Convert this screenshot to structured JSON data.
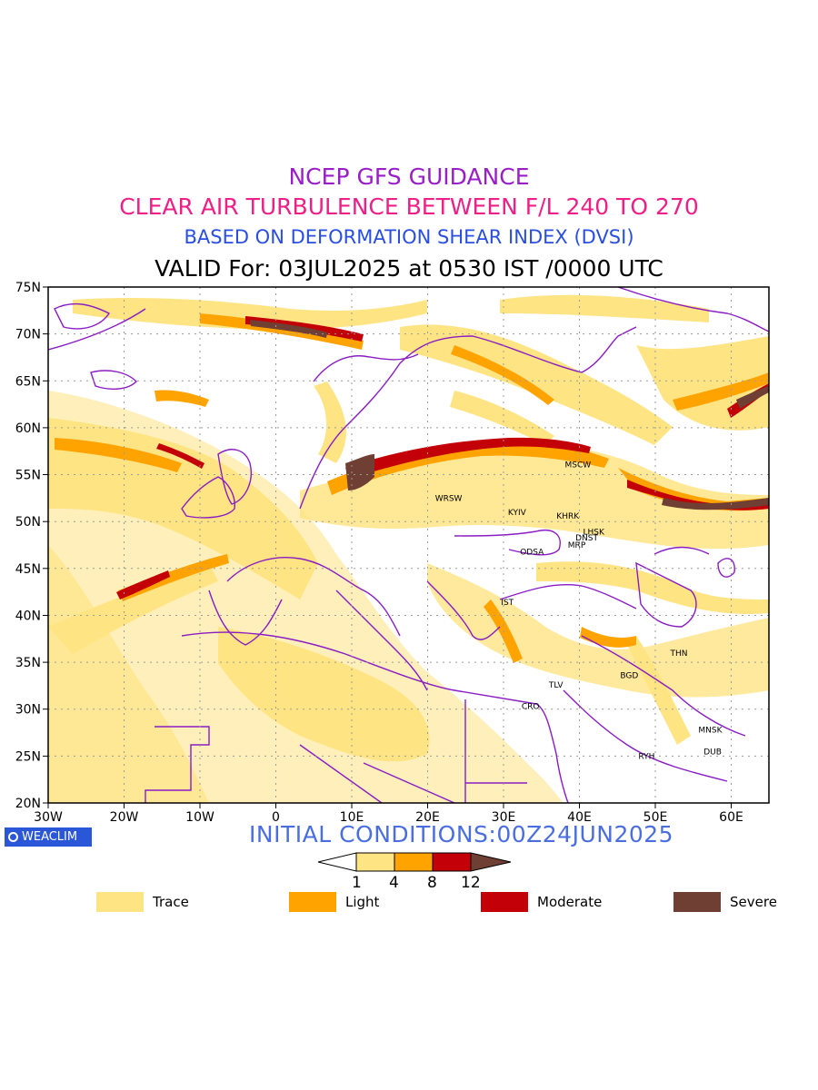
{
  "titles": {
    "line1": "NCEP GFS GUIDANCE",
    "line2": "CLEAR AIR TURBULENCE BETWEEN F/L 240 TO 270",
    "line3": "BASED ON DEFORMATION SHEAR INDEX (DVSI)",
    "line4": "VALID For: 03JUL2025 at 0530 IST /0000 UTC"
  },
  "initial_conditions": "INITIAL CONDITIONS:00Z24JUN2025",
  "brand": "WEACLIM",
  "axes": {
    "lon_range": [
      -30,
      65
    ],
    "lat_range": [
      20,
      75
    ],
    "lon_ticks": [
      "30W",
      "20W",
      "10W",
      "0",
      "10E",
      "20E",
      "30E",
      "40E",
      "50E",
      "60E"
    ],
    "lat_ticks": [
      "75N",
      "70N",
      "65N",
      "60N",
      "55N",
      "50N",
      "45N",
      "40N",
      "35N",
      "30N",
      "25N",
      "20N"
    ],
    "grid": true
  },
  "stations": [
    {
      "code": "MSCW",
      "lon": 38.1,
      "lat": 55.8
    },
    {
      "code": "WRSW",
      "lon": 21.0,
      "lat": 52.2
    },
    {
      "code": "KYIV",
      "lon": 30.6,
      "lat": 50.7
    },
    {
      "code": "KHRK",
      "lon": 37.0,
      "lat": 50.3
    },
    {
      "code": "LHSK",
      "lon": 40.5,
      "lat": 48.6
    },
    {
      "code": "DNST",
      "lon": 39.5,
      "lat": 48.0
    },
    {
      "code": "MRP",
      "lon": 38.5,
      "lat": 47.2
    },
    {
      "code": "ODSA",
      "lon": 32.2,
      "lat": 46.5
    },
    {
      "code": "IST",
      "lon": 29.7,
      "lat": 41.1
    },
    {
      "code": "THN",
      "lon": 52.0,
      "lat": 35.7
    },
    {
      "code": "BGD",
      "lon": 45.4,
      "lat": 33.3
    },
    {
      "code": "TLV",
      "lon": 36.0,
      "lat": 32.3
    },
    {
      "code": "CRO",
      "lon": 32.4,
      "lat": 30.0
    },
    {
      "code": "MNSK",
      "lon": 55.7,
      "lat": 27.5
    },
    {
      "code": "RYH",
      "lon": 47.8,
      "lat": 24.7
    },
    {
      "code": "DUB",
      "lon": 56.4,
      "lat": 25.2
    }
  ],
  "colorbar": {
    "thresholds": [
      "1",
      "4",
      "8",
      "12"
    ],
    "colors": [
      "#ffe484",
      "#ffa300",
      "#c30008",
      "#6e3f32"
    ]
  },
  "legend": [
    {
      "label": "Trace",
      "color": "#ffe484"
    },
    {
      "label": "Light",
      "color": "#ffa300"
    },
    {
      "label": "Moderate",
      "color": "#c30008"
    },
    {
      "label": "Severe",
      "color": "#6e3f32"
    }
  ]
}
